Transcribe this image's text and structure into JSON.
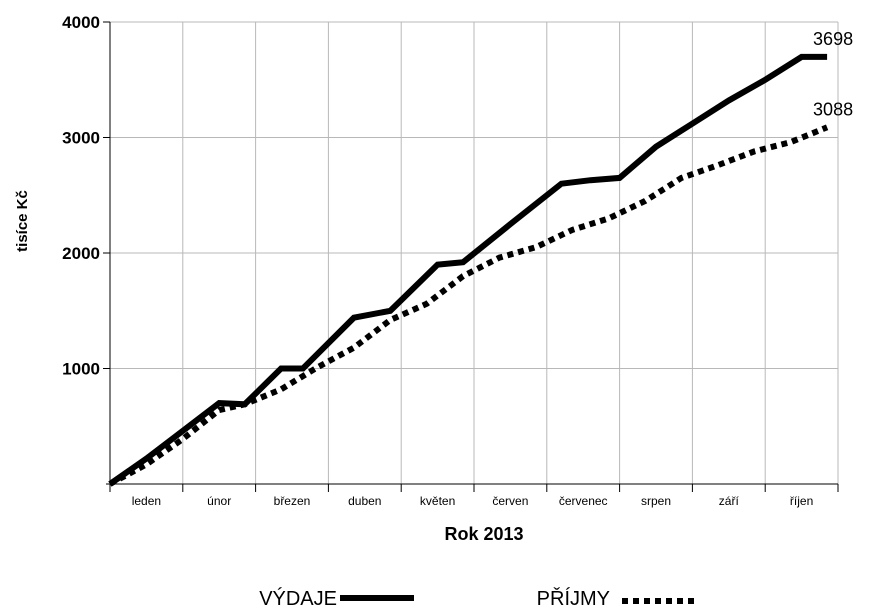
{
  "chart_data": {
    "type": "line",
    "title": "",
    "xlabel": "Rok 2013",
    "ylabel": "tisíce Kč",
    "ylim": [
      0,
      4000
    ],
    "yticks": [
      "1000",
      "2000",
      "3000",
      "4000"
    ],
    "categories": [
      "leden",
      "únor",
      "březen",
      "duben",
      "květen",
      "červen",
      "červenec",
      "srpen",
      "září",
      "říjen"
    ],
    "grid": true,
    "legend_position": "bottom",
    "x_unit_note": "x values are months elapsed from the start of January (0 = start of leden, 10 = end of říjen)",
    "series": [
      {
        "name": "VÝDAJE",
        "style": "solid",
        "color": "#000000",
        "points": [
          [
            0,
            0
          ],
          [
            0.5,
            220
          ],
          [
            1.0,
            460
          ],
          [
            1.5,
            700
          ],
          [
            1.85,
            690
          ],
          [
            2.35,
            1000
          ],
          [
            2.65,
            1000
          ],
          [
            3.35,
            1440
          ],
          [
            3.85,
            1500
          ],
          [
            4.5,
            1900
          ],
          [
            4.85,
            1920
          ],
          [
            5.5,
            2250
          ],
          [
            6.2,
            2600
          ],
          [
            6.6,
            2630
          ],
          [
            7.0,
            2650
          ],
          [
            7.5,
            2920
          ],
          [
            8.0,
            3120
          ],
          [
            8.5,
            3320
          ],
          [
            9.0,
            3500
          ],
          [
            9.5,
            3698
          ],
          [
            9.85,
            3698
          ]
        ],
        "end_label": "3698"
      },
      {
        "name": "PŘÍJMY",
        "style": "dotted",
        "color": "#000000",
        "points": [
          [
            0,
            0
          ],
          [
            0.5,
            170
          ],
          [
            1.0,
            390
          ],
          [
            1.5,
            640
          ],
          [
            1.85,
            690
          ],
          [
            2.35,
            820
          ],
          [
            2.85,
            1010
          ],
          [
            3.35,
            1180
          ],
          [
            3.85,
            1420
          ],
          [
            4.35,
            1560
          ],
          [
            4.85,
            1800
          ],
          [
            5.35,
            1960
          ],
          [
            5.85,
            2050
          ],
          [
            6.35,
            2200
          ],
          [
            6.85,
            2300
          ],
          [
            7.35,
            2450
          ],
          [
            7.85,
            2650
          ],
          [
            8.35,
            2760
          ],
          [
            8.85,
            2880
          ],
          [
            9.35,
            2960
          ],
          [
            9.85,
            3088
          ]
        ],
        "end_label": "3088"
      }
    ]
  }
}
